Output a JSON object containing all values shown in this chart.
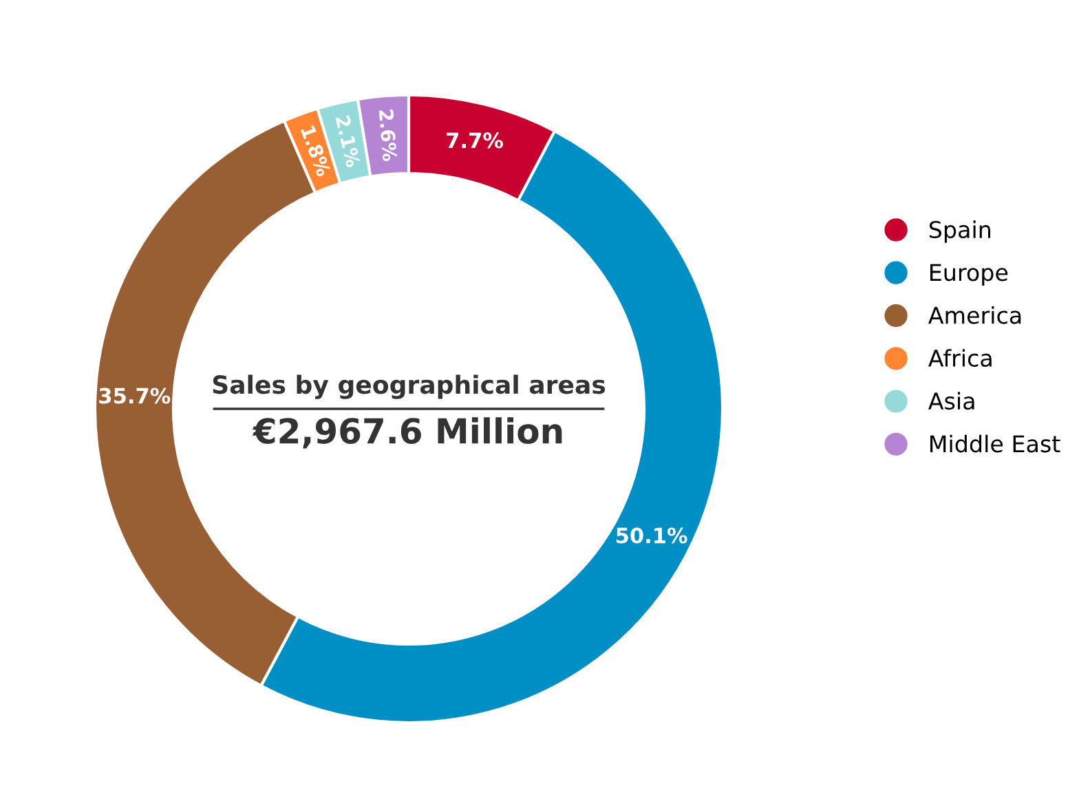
{
  "chart_data": {
    "type": "donut",
    "title": "Sales by geographical areas",
    "subtitle": "€2,967.6 Million",
    "categories": [
      "Spain",
      "Europe",
      "America",
      "Africa",
      "Asia",
      "Middle East"
    ],
    "values": [
      7.7,
      50.1,
      35.7,
      1.8,
      2.1,
      2.6
    ],
    "colors": [
      "#c8002f",
      "#008fc5",
      "#985f35",
      "#ff8533",
      "#96d9da",
      "#b585d4"
    ],
    "value_labels": [
      "7.7%",
      "50.1%",
      "35.7%",
      "1.8%",
      "2.1%",
      "2.6%"
    ],
    "legend": "right"
  }
}
